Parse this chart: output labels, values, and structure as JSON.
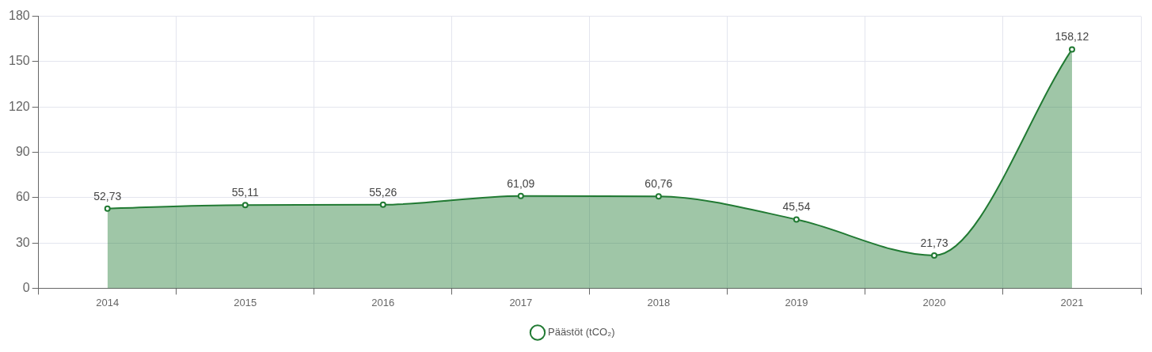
{
  "chart_data": {
    "type": "area",
    "categories": [
      "2014",
      "2015",
      "2016",
      "2017",
      "2018",
      "2019",
      "2020",
      "2021"
    ],
    "series": [
      {
        "name": "Päästöt (tCO₂)",
        "color": "#217a33",
        "values": [
          52.73,
          55.11,
          55.26,
          61.09,
          60.76,
          45.54,
          21.73,
          158.12
        ],
        "value_labels": [
          "52,73",
          "55,11",
          "55,26",
          "61,09",
          "60,76",
          "45,54",
          "21,73",
          "158,12"
        ]
      }
    ],
    "ylim": [
      0,
      180
    ],
    "yticks": [
      0,
      30,
      60,
      90,
      120,
      150,
      180
    ],
    "grid": true,
    "legend": "bottom",
    "marker": "circle"
  }
}
